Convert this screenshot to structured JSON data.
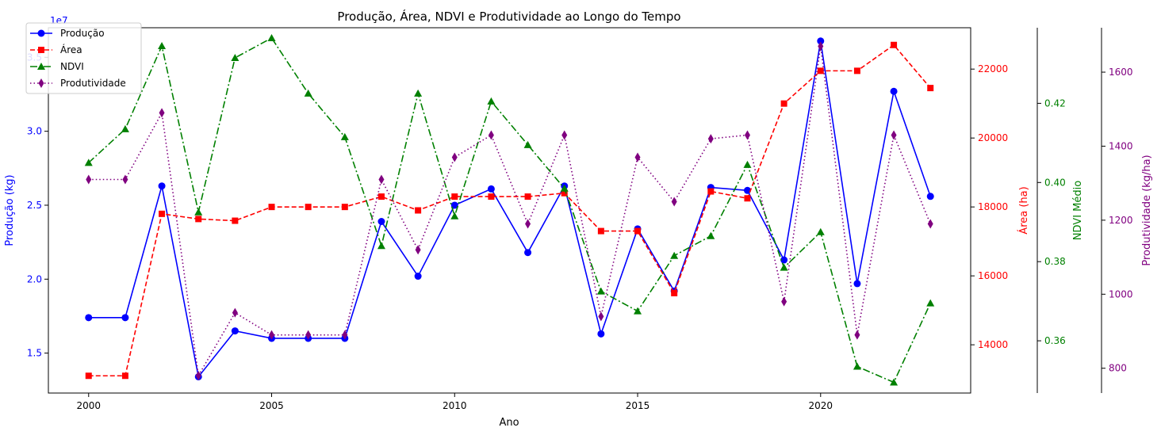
{
  "chart_data": {
    "type": "line",
    "title": "Produção, Área, NDVI e Produtividade ao Longo do Tempo",
    "xlabel": "Ano",
    "x": [
      2000,
      2001,
      2002,
      2003,
      2004,
      2005,
      2006,
      2007,
      2008,
      2009,
      2010,
      2011,
      2012,
      2013,
      2014,
      2015,
      2016,
      2017,
      2018,
      2019,
      2020,
      2021,
      2022,
      2023
    ],
    "xlim": [
      1998.9,
      2024.1
    ],
    "x_ticks": [
      2000,
      2005,
      2010,
      2015,
      2020
    ],
    "legend_position": "top-left",
    "grid": false,
    "series": [
      {
        "name": "Produção",
        "axis_label": "Produção (kg)",
        "axis_side": "left",
        "color": "#0000ff",
        "line_style": "solid",
        "marker": "circle",
        "offset_text": "1e7",
        "ylim": [
          12.3,
          37.0
        ],
        "ticks": [
          15,
          20,
          25,
          30,
          35
        ],
        "tick_labels": [
          "1.5",
          "2.0",
          "2.5",
          "3.0",
          "3.5"
        ],
        "values": [
          17.4,
          17.4,
          26.3,
          13.4,
          16.5,
          16.0,
          16.0,
          16.0,
          23.9,
          20.2,
          25.0,
          26.1,
          21.8,
          26.3,
          16.3,
          23.4,
          19.2,
          26.2,
          26.0,
          21.3,
          36.1,
          19.7,
          32.7,
          25.6
        ]
      },
      {
        "name": "Área",
        "axis_label": "Área (ha)",
        "axis_side": "right",
        "color": "#ff0000",
        "line_style": "dashed",
        "marker": "square",
        "ylim": [
          12600,
          23200
        ],
        "ticks": [
          14000,
          16000,
          18000,
          20000,
          22000
        ],
        "tick_labels": [
          "14000",
          "16000",
          "18000",
          "20000",
          "22000"
        ],
        "values": [
          13100,
          13100,
          17800,
          17650,
          17600,
          18000,
          18000,
          18000,
          18300,
          17900,
          18300,
          18300,
          18300,
          18400,
          17300,
          17300,
          15500,
          18450,
          18250,
          21000,
          21950,
          21950,
          22700,
          21450
        ]
      },
      {
        "name": "NDVI",
        "axis_label": "NDVI Médio",
        "axis_side": "right",
        "color": "#008000",
        "line_style": "dashdot",
        "marker": "triangle",
        "ylim": [
          0.3468,
          0.4391
        ],
        "ticks": [
          0.36,
          0.38,
          0.4,
          0.42
        ],
        "tick_labels": [
          "0.36",
          "0.38",
          "0.40",
          "0.42"
        ],
        "values": [
          0.405,
          0.4135,
          0.4345,
          0.3925,
          0.4315,
          0.4365,
          0.4225,
          0.4115,
          0.384,
          0.4225,
          0.3915,
          0.4205,
          0.4095,
          0.3985,
          0.3725,
          0.3675,
          0.3815,
          0.3865,
          0.4045,
          0.3785,
          0.3875,
          0.3535,
          0.3495,
          0.3695
        ]
      },
      {
        "name": "Produtividade",
        "axis_label": "Produtividade (kg/ha)",
        "axis_side": "right",
        "color": "#800080",
        "line_style": "dotted",
        "marker": "diamond",
        "ylim": [
          733,
          1720
        ],
        "ticks": [
          800,
          1000,
          1200,
          1400,
          1600
        ],
        "tick_labels": [
          "800",
          "1000",
          "1200",
          "1400",
          "1600"
        ],
        "values": [
          1310,
          1310,
          1490,
          780,
          950,
          890,
          890,
          890,
          1310,
          1120,
          1370,
          1430,
          1190,
          1430,
          940,
          1370,
          1250,
          1420,
          1430,
          980,
          1670,
          890,
          1430,
          1190
        ]
      }
    ]
  }
}
